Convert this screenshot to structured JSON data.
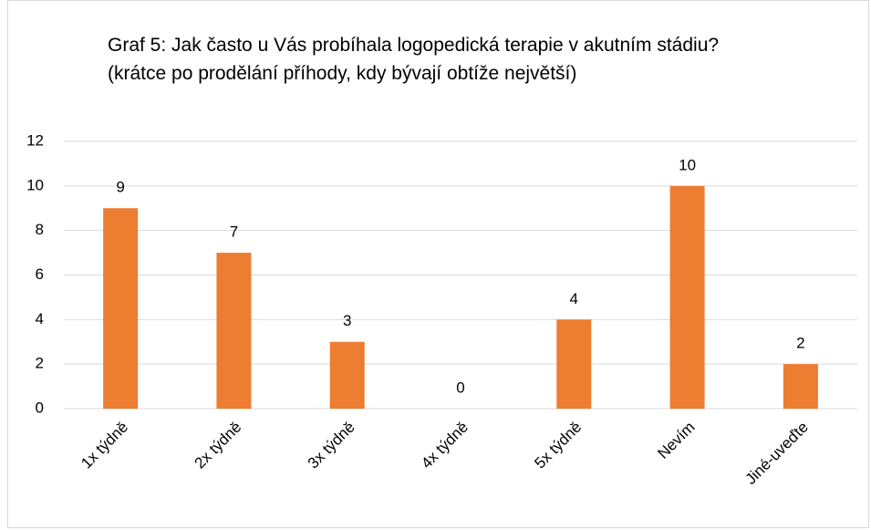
{
  "chart_data": {
    "type": "bar",
    "title": "Graf 5: Jak často u Vás probíhala logopedická terapie v akutním stádiu? (krátce po prodělání příhody, kdy bývají obtíže největší)",
    "categories": [
      "1x týdně",
      "2x týdně",
      "3x týdně",
      "4x týdně",
      "5x týdně",
      "Nevím",
      "Jiné-uveďte"
    ],
    "values": [
      9,
      7,
      3,
      0,
      4,
      10,
      2
    ],
    "color": "#ed7d31",
    "ylim": [
      0,
      12
    ],
    "yticks": [
      0,
      2,
      4,
      6,
      8,
      10,
      12
    ],
    "grid": true
  }
}
